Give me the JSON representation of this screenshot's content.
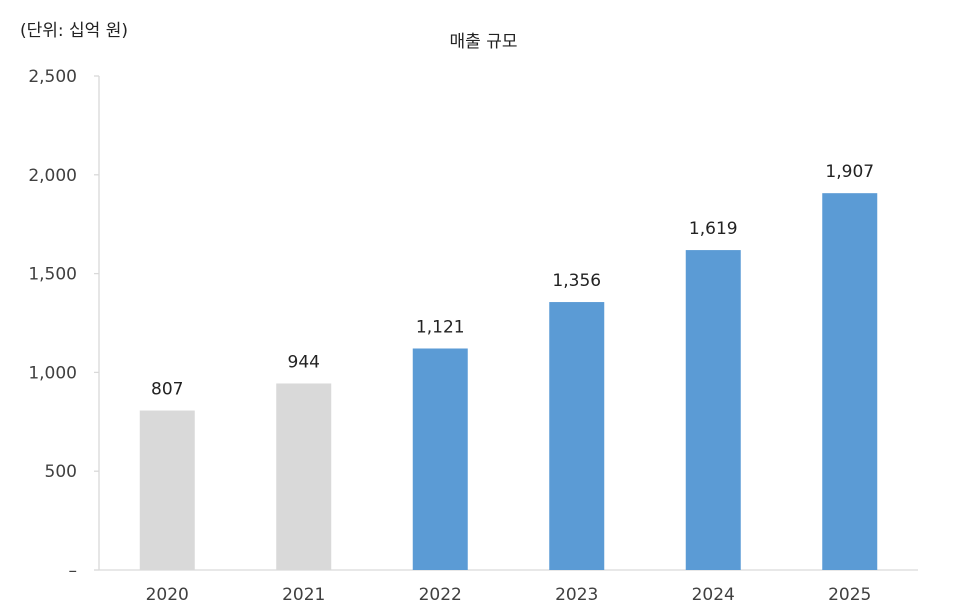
{
  "chart_data": {
    "type": "bar",
    "title": "매출 규모",
    "unit_label": "(단위: 십억 원)",
    "categories": [
      "2020",
      "2021",
      "2022",
      "2023",
      "2024",
      "2025"
    ],
    "values": [
      807,
      944,
      1121,
      1356,
      1619,
      1907
    ],
    "value_labels": [
      "807",
      "944",
      "1,121",
      "1,356",
      "1,619",
      "1,907"
    ],
    "bar_colors": [
      "#d9d9d9",
      "#d9d9d9",
      "#5b9bd5",
      "#5b9bd5",
      "#5b9bd5",
      "#5b9bd5"
    ],
    "ylim": [
      0,
      2500
    ],
    "y_ticks": [
      0,
      500,
      1000,
      1500,
      2000,
      2500
    ],
    "y_tick_labels": [
      "–",
      "500",
      "1,000",
      "1,500",
      "2,000",
      "2,500"
    ],
    "xlabel": "",
    "ylabel": "",
    "grid": false,
    "legend": "none"
  },
  "colors": {
    "actual": "#d9d9d9",
    "forecast": "#5b9bd5",
    "axis": "#d9d9d9",
    "text": "#222222",
    "tick_text": "#404040"
  }
}
